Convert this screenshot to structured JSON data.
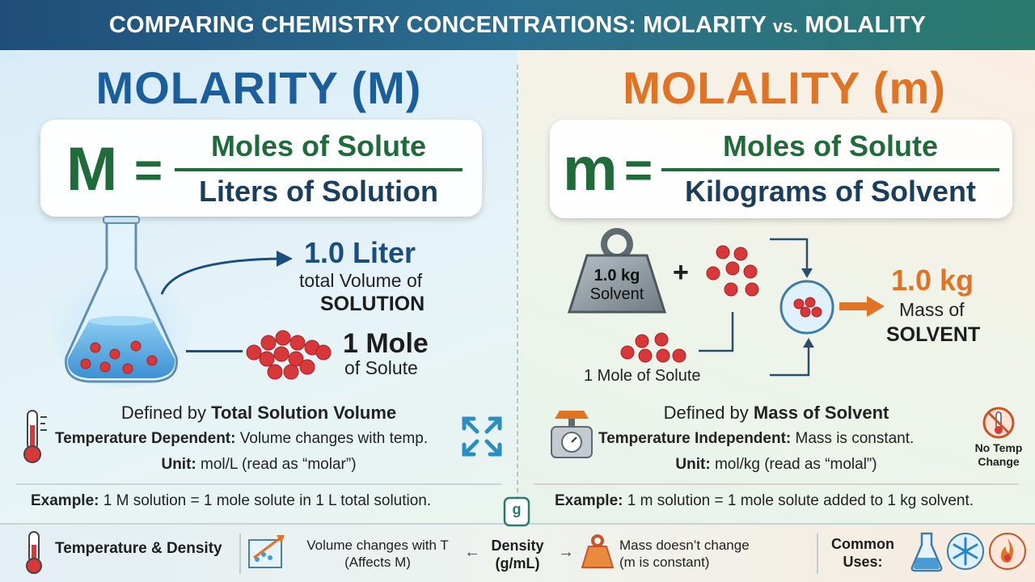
{
  "header": {
    "title_main": "COMPARING CHEMISTRY CONCENTRATIONS: MOLARITY",
    "title_vs": "vs.",
    "title_end": "MOLALITY"
  },
  "molarity": {
    "title": "MOLARITY (M)",
    "formula_symbol": "M",
    "formula_eq": "=",
    "numerator": "Moles of Solute",
    "denominator": "Liters of Solution",
    "volume_value": "1.0 Liter",
    "volume_line1": "total Volume of",
    "volume_line2": "SOLUTION",
    "mole_value": "1 Mole",
    "mole_label": "of Solute",
    "defined_prefix": "Defined by",
    "defined_bold": "Total Solution Volume",
    "temp_bold": "Temperature Dependent:",
    "temp_text": "Volume changes with temp.",
    "unit_bold": "Unit:",
    "unit_text": "mol/L (read as “molar”)",
    "example_bold": "Example:",
    "example_text": "1 M solution = 1 mole solute in 1 L total solution."
  },
  "molality": {
    "title": "MOLALITY (m)",
    "formula_symbol": "m",
    "formula_eq": "=",
    "numerator": "Moles of Solute",
    "denominator": "Kilograms of Solvent",
    "weight_line1": "1.0 kg",
    "weight_line2": "Solvent",
    "plus": "+",
    "mole_label": "1 Mole of Solute",
    "mass_value": "1.0 kg",
    "mass_line1": "Mass of",
    "mass_line2": "SOLVENT",
    "defined_prefix": "Defined by",
    "defined_bold": "Mass of Solvent",
    "temp_bold": "Temperature Independent:",
    "temp_text": "Mass is constant.",
    "unit_bold": "Unit:",
    "unit_text": "mol/kg (read as “molal”)",
    "no_temp_line1": "No Temp",
    "no_temp_line2": "Change",
    "example_bold": "Example:",
    "example_text": "1 m solution = 1 mole solute added to 1 kg solvent."
  },
  "footer": {
    "temp_density": "Temperature & Density",
    "volume_line1": "Volume changes with T",
    "volume_line2": "(Affects M)",
    "density_icon": "g",
    "density_line1": "Density",
    "density_line2": "(g/mL)",
    "mass_line1": "Mass doesn’t change",
    "mass_line2": "(m is constant)",
    "common_line1": "Common",
    "common_line2": "Uses:"
  },
  "colors": {
    "molarity_blue": "#1b5e9c",
    "molality_orange": "#e07424",
    "formula_green": "#1f6b3a",
    "molecule_red": "#d9383a"
  },
  "icons": [
    "flask-icon",
    "thermometer-icon",
    "expand-arrows-icon",
    "weight-icon",
    "scale-icon",
    "no-temp-icon",
    "density-icon",
    "volume-chart-icon",
    "mass-weight-icon",
    "beaker-icon",
    "snowflake-icon",
    "flame-icon"
  ]
}
